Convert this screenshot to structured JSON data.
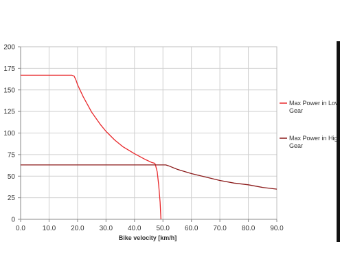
{
  "chart_data": {
    "type": "line",
    "title": "",
    "xlabel": "Bike velocity [km/h]",
    "ylabel": "",
    "xlim": [
      0,
      90
    ],
    "ylim": [
      0,
      200
    ],
    "x_ticks": [
      "0.0",
      "10.0",
      "20.0",
      "30.0",
      "40.0",
      "50.0",
      "60.0",
      "70.0",
      "80.0",
      "90.0"
    ],
    "y_ticks": [
      "0",
      "25",
      "50",
      "75",
      "100",
      "125",
      "150",
      "175",
      "200"
    ],
    "grid": true,
    "legend_position": "right",
    "series": [
      {
        "name": "Max Power in Low Gear",
        "color": "#e8282b",
        "points": [
          [
            0,
            167
          ],
          [
            18,
            167
          ],
          [
            18.8,
            166
          ],
          [
            19.5,
            161
          ],
          [
            20,
            156
          ],
          [
            22,
            142
          ],
          [
            25,
            124
          ],
          [
            28,
            110
          ],
          [
            30,
            102
          ],
          [
            33,
            92
          ],
          [
            36,
            84
          ],
          [
            40,
            76
          ],
          [
            44,
            69
          ],
          [
            46,
            66
          ],
          [
            47,
            65
          ],
          [
            47.3,
            64
          ],
          [
            48,
            55
          ],
          [
            48.5,
            40
          ],
          [
            49,
            20
          ],
          [
            49.3,
            0
          ]
        ]
      },
      {
        "name": "Max Power in High Gear",
        "color": "#8b1a1a",
        "points": [
          [
            0,
            63
          ],
          [
            50,
            63
          ],
          [
            51,
            63
          ],
          [
            52,
            62
          ],
          [
            55,
            58
          ],
          [
            60,
            53
          ],
          [
            65,
            49
          ],
          [
            70,
            45
          ],
          [
            75,
            42
          ],
          [
            80,
            40
          ],
          [
            85,
            37
          ],
          [
            90,
            35
          ]
        ]
      }
    ]
  }
}
